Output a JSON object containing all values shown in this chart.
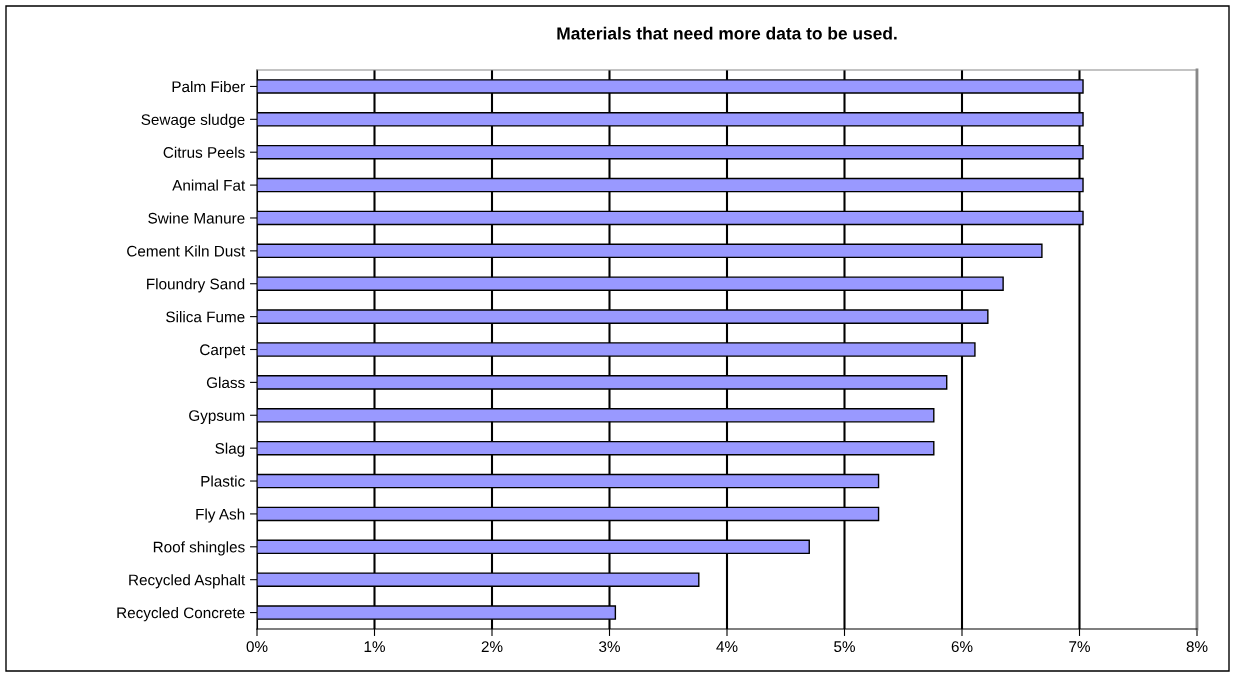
{
  "chart_data": {
    "type": "bar",
    "orientation": "horizontal",
    "title": "Materials that need more data to be used.",
    "categories": [
      "Palm Fiber",
      "Sewage sludge",
      "Citrus Peels",
      "Animal Fat",
      "Swine Manure",
      "Cement Kiln Dust",
      "Floundry Sand",
      "Silica Fume",
      "Carpet",
      "Glass",
      "Gypsum",
      "Slag",
      "Plastic",
      "Fly Ash",
      "Roof shingles",
      "Recycled Asphalt",
      "Recycled Concrete"
    ],
    "values": [
      7.03,
      7.03,
      7.03,
      7.03,
      7.03,
      6.68,
      6.35,
      6.22,
      6.11,
      5.87,
      5.76,
      5.76,
      5.29,
      5.29,
      4.7,
      3.76,
      3.05
    ],
    "color": "#9999ff",
    "xlim": [
      0,
      8
    ],
    "xticks": [
      {
        "value": 0,
        "label": "0%"
      },
      {
        "value": 1,
        "label": "1%"
      },
      {
        "value": 2,
        "label": "2%"
      },
      {
        "value": 3,
        "label": "3%"
      },
      {
        "value": 4,
        "label": "4%"
      },
      {
        "value": 5,
        "label": "5%"
      },
      {
        "value": 6,
        "label": "6%"
      },
      {
        "value": 7,
        "label": "7%"
      },
      {
        "value": 8,
        "label": "8%"
      }
    ],
    "grid": "x",
    "legend": false
  }
}
